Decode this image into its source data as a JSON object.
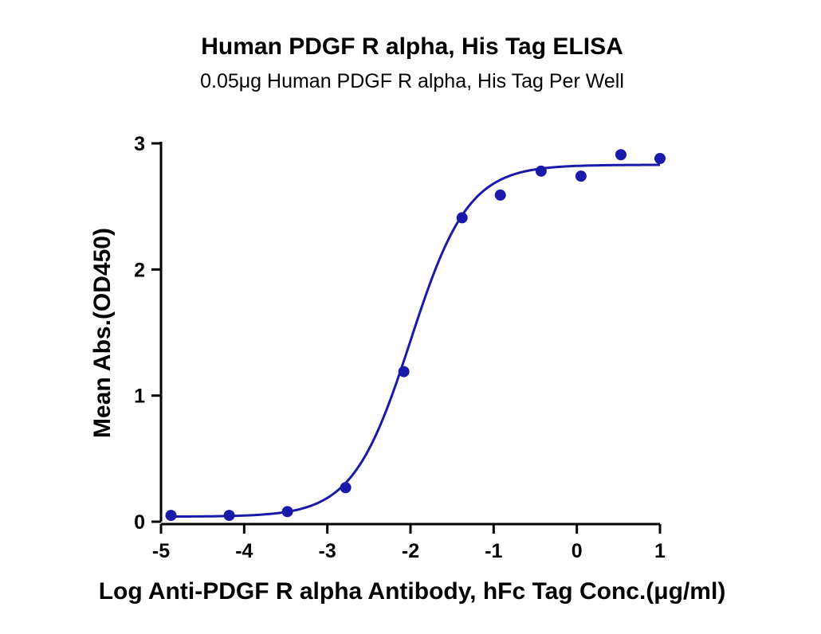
{
  "chart_data": {
    "type": "scatter",
    "title": "Human PDGF R alpha, His Tag ELISA",
    "subtitle": "0.05μg Human PDGF R alpha, His Tag Per Well",
    "xlabel": "Log Anti-PDGF R alpha Antibody, hFc Tag Conc.(μg/ml)",
    "ylabel": "Mean Abs.(OD450)",
    "xlim": [
      -5,
      1
    ],
    "ylim": [
      0,
      3
    ],
    "xticks": [
      -5,
      -4,
      -3,
      -2,
      -1,
      0,
      1
    ],
    "yticks": [
      0,
      1,
      2,
      3
    ],
    "grid": false,
    "color": "#1a1aaa",
    "series": [
      {
        "x": [
          -4.88,
          -4.18,
          -3.48,
          -2.78,
          -2.08,
          -1.38,
          -0.92,
          -0.43,
          0.05,
          0.53,
          1.0
        ],
        "y": [
          0.05,
          0.05,
          0.08,
          0.27,
          1.19,
          2.41,
          2.59,
          2.78,
          2.74,
          2.91,
          2.88
        ]
      }
    ],
    "fit_curve": {
      "model": "4PL",
      "bottom": 0.04,
      "top": 2.83,
      "log_ec50": -2.0,
      "hill_slope": 1.25
    }
  }
}
